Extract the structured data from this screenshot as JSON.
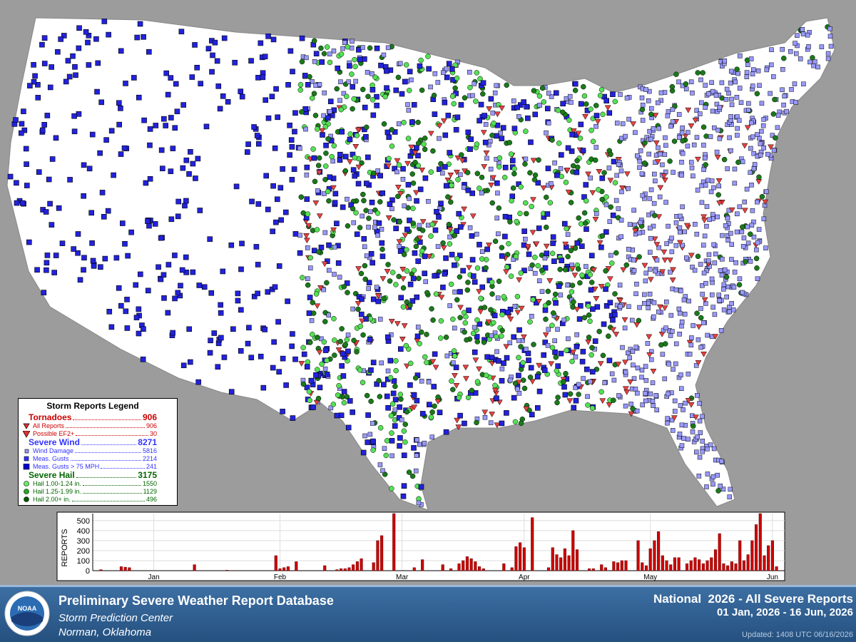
{
  "legend": {
    "title": "Storm Reports Legend",
    "groups": [
      {
        "name": "Tornadoes",
        "total": 906,
        "color": "#cc0000",
        "items": [
          {
            "label": "All Reports",
            "count": 906
          },
          {
            "label": "Possible EF2+",
            "count": 30
          }
        ]
      },
      {
        "name": "Severe Wind",
        "total": 8271,
        "color": "#3333ff",
        "items": [
          {
            "label": "Wind Damage",
            "count": 5816
          },
          {
            "label": "Meas. Gusts",
            "count": 2214
          },
          {
            "label": "Meas. Gusts > 75 MPH",
            "count": 241
          }
        ]
      },
      {
        "name": "Severe Hail",
        "total": 3175,
        "color": "#006600",
        "items": [
          {
            "label": "Hail 1.00-1.24 in.",
            "count": 1550
          },
          {
            "label": "Hail 1.25-1.99 in.",
            "count": 1129
          },
          {
            "label": "Hail 2.00+ in.",
            "count": 496
          }
        ]
      }
    ]
  },
  "chart_data": {
    "type": "bar",
    "ylabel": "REPORTS",
    "color": "#cc0000",
    "grid": true,
    "xlim": [
      0,
      170
    ],
    "ylim": [
      0,
      570
    ],
    "xticks": [
      {
        "value": 15,
        "label": "Jan"
      },
      {
        "value": 46,
        "label": "Feb"
      },
      {
        "value": 76,
        "label": "Mar"
      },
      {
        "value": 106,
        "label": "Apr"
      },
      {
        "value": 137,
        "label": "May"
      },
      {
        "value": 167,
        "label": "Jun"
      }
    ],
    "yticks": [
      0,
      100,
      200,
      300,
      400,
      500
    ],
    "x": [
      2,
      7,
      8,
      9,
      25,
      33,
      45,
      46,
      47,
      48,
      50,
      57,
      60,
      61,
      62,
      63,
      64,
      65,
      66,
      69,
      70,
      71,
      74,
      79,
      81,
      86,
      88,
      90,
      91,
      92,
      93,
      94,
      95,
      96,
      101,
      103,
      104,
      105,
      106,
      108,
      112,
      113,
      114,
      115,
      116,
      117,
      118,
      119,
      122,
      123,
      125,
      126,
      128,
      129,
      130,
      131,
      134,
      135,
      136,
      137,
      138,
      139,
      140,
      141,
      142,
      143,
      144,
      146,
      147,
      148,
      149,
      150,
      151,
      152,
      153,
      154,
      155,
      156,
      157,
      158,
      159,
      160,
      161,
      162,
      163,
      164,
      165,
      166,
      167,
      168
    ],
    "values": [
      10,
      40,
      35,
      30,
      60,
      5,
      150,
      20,
      30,
      40,
      90,
      50,
      10,
      20,
      20,
      30,
      60,
      90,
      120,
      80,
      300,
      350,
      570,
      30,
      110,
      60,
      20,
      70,
      100,
      140,
      120,
      90,
      40,
      20,
      70,
      30,
      240,
      280,
      230,
      530,
      30,
      230,
      160,
      130,
      220,
      150,
      400,
      210,
      20,
      20,
      60,
      30,
      90,
      80,
      100,
      100,
      300,
      80,
      50,
      220,
      300,
      390,
      150,
      100,
      60,
      130,
      130,
      70,
      100,
      130,
      110,
      70,
      100,
      130,
      210,
      370,
      70,
      50,
      90,
      70,
      300,
      100,
      160,
      300,
      460,
      570,
      150,
      250,
      300,
      40
    ]
  },
  "footer": {
    "logo": "NOAA",
    "title": "Preliminary Severe Weather Report Database",
    "org": "Storm Prediction Center",
    "place": "Norman, Oklahoma",
    "heading": "National  2026 - All Severe Reports",
    "range": "01 Jan, 2026 - 16 Jun, 2026",
    "updated": "Updated: 1408 UTC 06/16/2026"
  }
}
